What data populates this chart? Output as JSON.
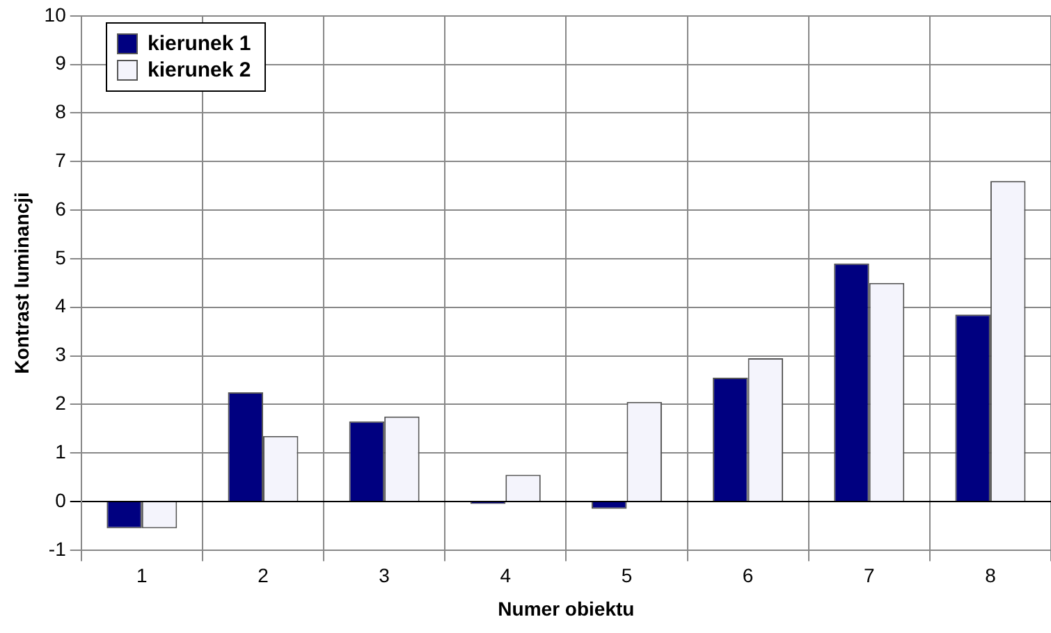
{
  "chart_data": {
    "type": "bar",
    "xlabel": "Numer obiektu",
    "ylabel": "Kontrast luminancji",
    "categories": [
      "1",
      "2",
      "3",
      "4",
      "5",
      "6",
      "7",
      "8"
    ],
    "series": [
      {
        "name": "kierunek 1",
        "color": "#000080",
        "values": [
          -0.55,
          2.25,
          1.65,
          -0.05,
          -0.15,
          2.55,
          4.9,
          3.85
        ]
      },
      {
        "name": "kierunek 2",
        "color": "#f4f4fc",
        "values": [
          -0.55,
          1.35,
          1.75,
          0.55,
          2.05,
          2.95,
          4.5,
          6.6
        ]
      }
    ],
    "ylim": [
      -1,
      10
    ],
    "yticks": [
      -1,
      0,
      1,
      2,
      3,
      4,
      5,
      6,
      7,
      8,
      9,
      10
    ],
    "grid": true,
    "legend": "top left"
  }
}
